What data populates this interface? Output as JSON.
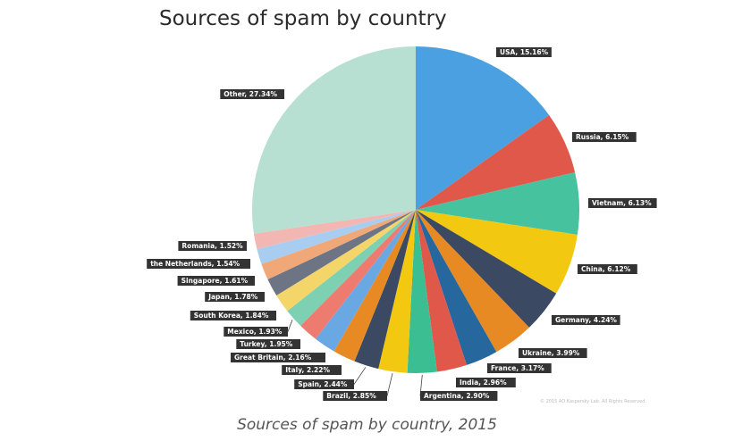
{
  "title": "Sources of spam by country",
  "caption": "Sources of spam by country, 2015",
  "copyright": "© 2015 AO Kaspersky Lab. All Rights Reserved.",
  "chart_data": {
    "type": "pie",
    "title": "Sources of spam by country",
    "slices": [
      {
        "label": "USA",
        "value": 15.16,
        "text": "USA, 15.16%",
        "color": "#4aa0e0"
      },
      {
        "label": "Russia",
        "value": 6.15,
        "text": "Russia, 6.15%",
        "color": "#e0584a"
      },
      {
        "label": "Vietnam",
        "value": 6.13,
        "text": "Vietnam, 6.13%",
        "color": "#46c29e"
      },
      {
        "label": "China",
        "value": 6.12,
        "text": "China, 6.12%",
        "color": "#f2c811"
      },
      {
        "label": "Germany",
        "value": 4.24,
        "text": "Germany, 4.24%",
        "color": "#3b4a62"
      },
      {
        "label": "Ukraine",
        "value": 3.99,
        "text": "Ukraine, 3.99%",
        "color": "#e88a24"
      },
      {
        "label": "France",
        "value": 3.17,
        "text": "France, 3.17%",
        "color": "#26679e"
      },
      {
        "label": "India",
        "value": 2.96,
        "text": "India, 2.96%",
        "color": "#e0584a"
      },
      {
        "label": "Argentina",
        "value": 2.9,
        "text": "Argentina, 2.90%",
        "color": "#3cbe93"
      },
      {
        "label": "Brazil",
        "value": 2.85,
        "text": "Brazil, 2.85%",
        "color": "#f2c811"
      },
      {
        "label": "Spain",
        "value": 2.44,
        "text": "Spain, 2.44%",
        "color": "#3b4a62"
      },
      {
        "label": "Italy",
        "value": 2.22,
        "text": "Italy, 2.22%",
        "color": "#e88a24"
      },
      {
        "label": "Great Britain",
        "value": 2.16,
        "text": "Great Britain, 2.16%",
        "color": "#6aa8e4"
      },
      {
        "label": "Turkey",
        "value": 1.95,
        "text": "Turkey, 1.95%",
        "color": "#ee7b70"
      },
      {
        "label": "Mexico",
        "value": 1.93,
        "text": "Mexico, 1.93%",
        "color": "#7dd1b2"
      },
      {
        "label": "South Korea",
        "value": 1.84,
        "text": "South Korea, 1.84%",
        "color": "#f4d56a"
      },
      {
        "label": "Japan",
        "value": 1.78,
        "text": "Japan, 1.78%",
        "color": "#6d7585"
      },
      {
        "label": "Singapore",
        "value": 1.61,
        "text": "Singapore, 1.61%",
        "color": "#f0a878"
      },
      {
        "label": "the Netherlands",
        "value": 1.54,
        "text": "the Netherlands, 1.54%",
        "color": "#a9cdf0"
      },
      {
        "label": "Romania",
        "value": 1.52,
        "text": "Romania, 1.52%",
        "color": "#f2b7b2"
      },
      {
        "label": "Other",
        "value": 27.34,
        "text": "Other, 27.34%",
        "color": "#b8e0d2"
      }
    ]
  }
}
